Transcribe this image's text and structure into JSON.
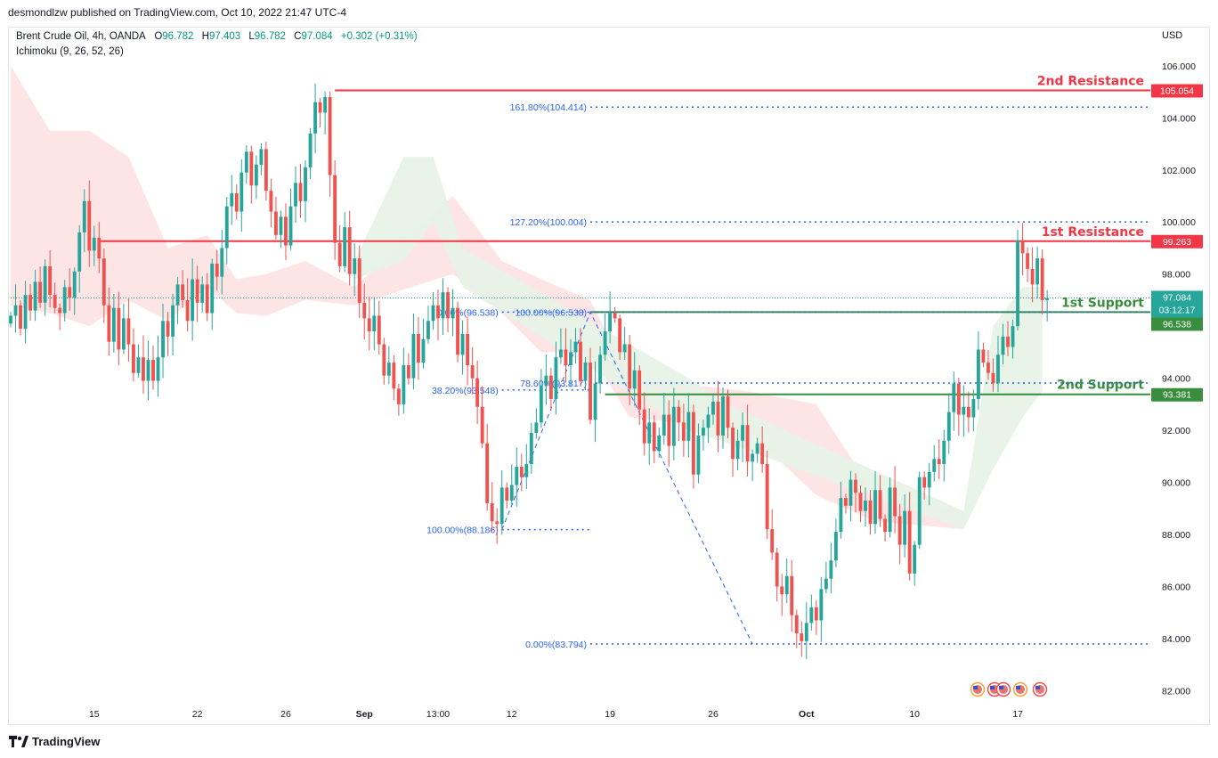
{
  "publisher": "desmondlzw published on TradingView.com, Oct 10, 2022 21:47 UTC-4",
  "legend": {
    "symbol": "Brent Crude Oil, 4h, OANDA",
    "o_label": "O",
    "o": "96.782",
    "h_label": "H",
    "h": "97.403",
    "l_label": "L",
    "l": "96.782",
    "c_label": "C",
    "c": "97.084",
    "change": "+0.302 (+0.31%)",
    "indicator": "Ichimoku (9, 26, 52, 26)"
  },
  "currency": "USD",
  "footer": {
    "brand": "TradingView",
    "logo_icon": "tradingview-logo-icon"
  },
  "colors": {
    "up": "#26a69a",
    "down": "#ef5350",
    "resistance": "#f23645",
    "support": "#388e3c",
    "fib": "#2962ff",
    "cloud_bear": "#fde2e2",
    "cloud_bull": "#e6f3e6"
  },
  "chart_data": {
    "type": "candlestick",
    "y_range": [
      81.5,
      107.5
    ],
    "y_ticks": [
      82,
      84,
      86,
      88,
      90,
      92,
      94,
      96,
      98,
      100,
      102,
      104,
      106
    ],
    "y_tick_labels": [
      "82.000",
      "84.000",
      "86.000",
      "88.000",
      "90.000",
      "92.000",
      "94.000",
      "96.000",
      "98.000",
      "100.000",
      "102.000",
      "104.000",
      "106.000"
    ],
    "x_range": [
      0,
      232
    ],
    "x_ticks": [
      {
        "i": 17,
        "label": "15"
      },
      {
        "i": 38,
        "label": "22"
      },
      {
        "i": 56,
        "label": "26"
      },
      {
        "i": 72,
        "label": "Sep"
      },
      {
        "i": 87,
        "label": "13:00"
      },
      {
        "i": 102,
        "label": "12"
      },
      {
        "i": 122,
        "label": "19"
      },
      {
        "i": 143,
        "label": "26"
      },
      {
        "i": 162,
        "label": "Oct"
      },
      {
        "i": 184,
        "label": "10"
      },
      {
        "i": 205,
        "label": "17"
      }
    ],
    "close": [
      96.4,
      96.8,
      95.9,
      97.2,
      96.6,
      97.7,
      96.9,
      98.3,
      97.2,
      96.7,
      96.5,
      97.5,
      97.1,
      98.1,
      99.6,
      100.8,
      98.9,
      99.4,
      98.6,
      96.8,
      95.4,
      96.7,
      95.1,
      96.3,
      95.3,
      94.2,
      94.8,
      93.9,
      94.7,
      93.9,
      94.8,
      96.2,
      95.6,
      96.8,
      97.6,
      97.0,
      96.2,
      97.8,
      96.9,
      97.6,
      96.5,
      98.4,
      97.9,
      99.0,
      100.6,
      101.1,
      100.4,
      101.9,
      102.7,
      101.4,
      102.2,
      102.8,
      101.2,
      100.4,
      99.5,
      100.2,
      99.1,
      100.6,
      101.5,
      100.8,
      102.1,
      103.4,
      104.6,
      104.2,
      104.8,
      101.8,
      99.2,
      98.3,
      99.8,
      98.0,
      98.6,
      96.9,
      96.3,
      95.8,
      96.4,
      95.3,
      94.1,
      94.6,
      93.6,
      93.0,
      94.5,
      94.0,
      95.7,
      94.6,
      95.5,
      96.2,
      96.8,
      96.3,
      97.3,
      96.3,
      96.7,
      94.9,
      95.7,
      94.5,
      94.0,
      92.9,
      91.5,
      89.2,
      88.5,
      88.4,
      89.8,
      89.3,
      89.9,
      90.6,
      90.2,
      90.7,
      91.9,
      92.3,
      93.7,
      94.1,
      93.2,
      94.8,
      95.1,
      94.5,
      95.0,
      95.4,
      93.9,
      94.6,
      92.4,
      93.8,
      94.9,
      95.8,
      96.5,
      96.3,
      95.0,
      95.3,
      93.6,
      94.3,
      92.8,
      91.5,
      92.3,
      91.2,
      91.8,
      92.6,
      91.4,
      92.9,
      92.3,
      91.6,
      92.7,
      90.3,
      91.8,
      92.1,
      92.6,
      93.1,
      91.8,
      93.3,
      92.1,
      90.9,
      91.6,
      92.2,
      90.8,
      91.1,
      91.5,
      90.7,
      88.2,
      87.3,
      86.0,
      85.7,
      86.4,
      84.9,
      84.2,
      83.9,
      84.6,
      85.2,
      84.7,
      85.9,
      86.3,
      87.0,
      88.1,
      89.4,
      89.1,
      90.1,
      89.6,
      88.9,
      89.3,
      88.4,
      89.7,
      88.6,
      88.1,
      89.8,
      88.7,
      87.6,
      88.9,
      86.5,
      87.6,
      90.2,
      89.8,
      90.4,
      90.9,
      90.7,
      91.6,
      92.7,
      93.8,
      92.6,
      92.9,
      92.5,
      93.2,
      95.1,
      94.6,
      94.2,
      93.8,
      94.9,
      95.6,
      95.2,
      96.0,
      99.3,
      98.8,
      98.2,
      97.6,
      98.6,
      97.0,
      97.08
    ],
    "h_levels": [
      {
        "label": "2nd Resistance",
        "value": 105.054,
        "tag": "105.054",
        "color": "#f23645"
      },
      {
        "label": "1st Resistance",
        "value": 99.263,
        "tag": "99.263",
        "color": "#f23645"
      },
      {
        "label": "1st Support",
        "value": 96.538,
        "tag": "96.538",
        "color": "#388e3c"
      },
      {
        "label": "2nd Support",
        "value": 93.381,
        "tag": "93.381",
        "color": "#388e3c"
      }
    ],
    "price_tag": {
      "value": 97.084,
      "label": "97.084",
      "countdown": "03:12:17"
    },
    "fib_left": [
      {
        "label": "0.00%(96.538)",
        "value": 96.538
      },
      {
        "label": "38.20%(93.548)",
        "value": 93.548
      },
      {
        "label": "100.00%(88.186)",
        "value": 88.186
      }
    ],
    "fib_right": [
      {
        "label": "161.80%(104.414)",
        "value": 104.414
      },
      {
        "label": "127.20%(100.004)",
        "value": 100.004
      },
      {
        "label": "100.00%(96.538)",
        "value": 96.538
      },
      {
        "label": "78.60%(93.817)",
        "value": 93.817
      },
      {
        "label": "0.00%(83.794)",
        "value": 83.794
      }
    ],
    "zigzag": [
      {
        "i": 100,
        "value": 88.186
      },
      {
        "i": 118,
        "value": 96.538
      },
      {
        "i": 151,
        "value": 83.794
      }
    ],
    "cloud_bear": [
      [
        0,
        106.0,
        96.8
      ],
      [
        8,
        103.5,
        96.5
      ],
      [
        16,
        103.5,
        96.0
      ],
      [
        24,
        102.5,
        97.0
      ],
      [
        32,
        99.0,
        96.2
      ],
      [
        40,
        99.5,
        97.5
      ],
      [
        46,
        97.8,
        96.5
      ],
      [
        52,
        98.0,
        96.4
      ],
      [
        60,
        98.5,
        97.0
      ],
      [
        70,
        97.5,
        96.8
      ],
      [
        90,
        101.0,
        98.0
      ],
      [
        100,
        98.5,
        96.5
      ],
      [
        108,
        97.8,
        95.0
      ],
      [
        118,
        97.0,
        95.0
      ],
      [
        126,
        94.0,
        92.5
      ],
      [
        150,
        93.5,
        92.0
      ],
      [
        164,
        93.0,
        89.5
      ],
      [
        176,
        89.5,
        88.5
      ],
      [
        194,
        88.9,
        88.2
      ]
    ],
    "cloud_bull": [
      [
        70,
        98.5,
        97.8
      ],
      [
        80,
        102.5,
        98.5
      ],
      [
        86,
        102.5,
        100.0
      ],
      [
        92,
        99.0,
        97.5
      ],
      [
        138,
        94.0,
        92.0
      ],
      [
        146,
        93.0,
        91.5
      ],
      [
        194,
        88.9,
        88.2
      ],
      [
        200,
        96.0,
        90.5
      ],
      [
        206,
        97.5,
        92.5
      ],
      [
        210,
        97.5,
        93.5
      ]
    ]
  }
}
